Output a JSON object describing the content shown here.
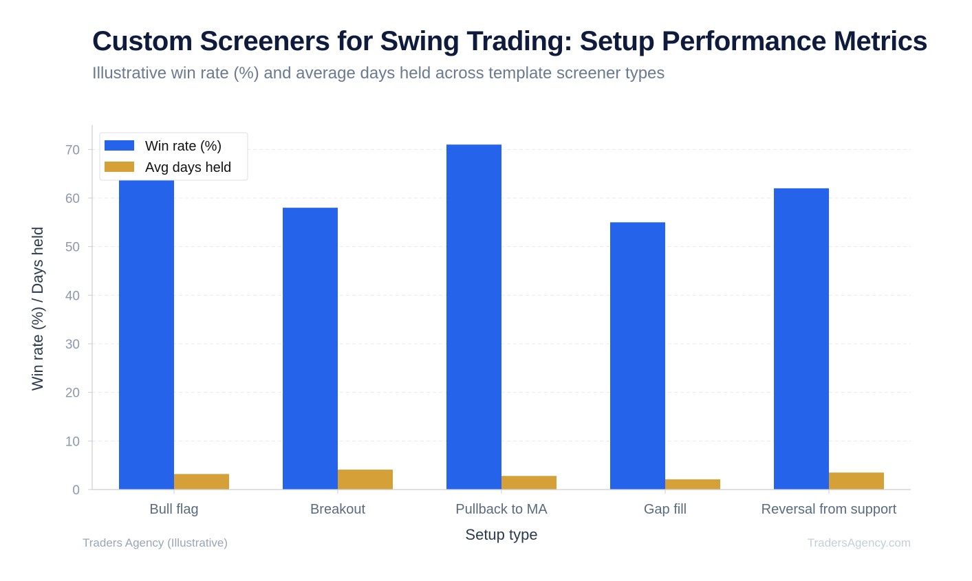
{
  "title": "Custom Screeners for Swing Trading: Setup Performance Metrics",
  "subtitle": "Illustrative win rate (%) and average days held across template screener types",
  "footer": {
    "source": "Traders Agency (Illustrative)",
    "site": "TradersAgency.com"
  },
  "chart_data": {
    "type": "bar",
    "title": "Custom Screeners for Swing Trading: Setup Performance Metrics",
    "xlabel": "Setup type",
    "ylabel": "Win rate (%) / Days held",
    "ylim": [
      0,
      75
    ],
    "yticks": [
      0,
      10,
      20,
      30,
      40,
      50,
      60,
      70
    ],
    "categories": [
      "Bull flag",
      "Breakout",
      "Pullback to MA",
      "Gap fill",
      "Reversal from support"
    ],
    "series": [
      {
        "name": "Win rate (%)",
        "color": "#2563eb",
        "values": [
          64,
          58,
          71,
          55,
          62
        ]
      },
      {
        "name": "Avg days held",
        "color": "#d4a037",
        "values": [
          3.2,
          4.1,
          2.8,
          2.1,
          3.5
        ]
      }
    ],
    "grid": true,
    "legend": "top-left"
  }
}
